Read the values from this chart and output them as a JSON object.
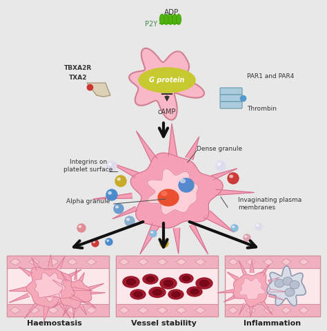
{
  "bg_color": "#e8e8e8",
  "top_platelet_color": "#f9b8c8",
  "top_platelet_edge": "#d08090",
  "g_protein_color": "#c8c830",
  "g_protein_text": "G protein",
  "camp_text": "cAMP",
  "adp_text": "ADP",
  "p2y_text": "P2Y",
  "par_text": "PAR1 and PAR4",
  "thrombin_text": "Thrombin",
  "tbxa2r_text": "TBXA2R",
  "txa2_text": "TXA2",
  "integrins_text": "Integrins on\nplatelet surface",
  "dense_granule_text": "Dense granule",
  "alpha_granule_text": "Alpha granule",
  "invaginating_text": "Invaginating plasma\nmembranes",
  "haemostasis_text": "Haemostasis",
  "vessel_text": "Vessel stability",
  "inflammation_text": "Inflammation",
  "mid_pink": "#f5a0b5",
  "mid_pink_inner": "#fdd0d8",
  "mid_edge": "#d07090"
}
